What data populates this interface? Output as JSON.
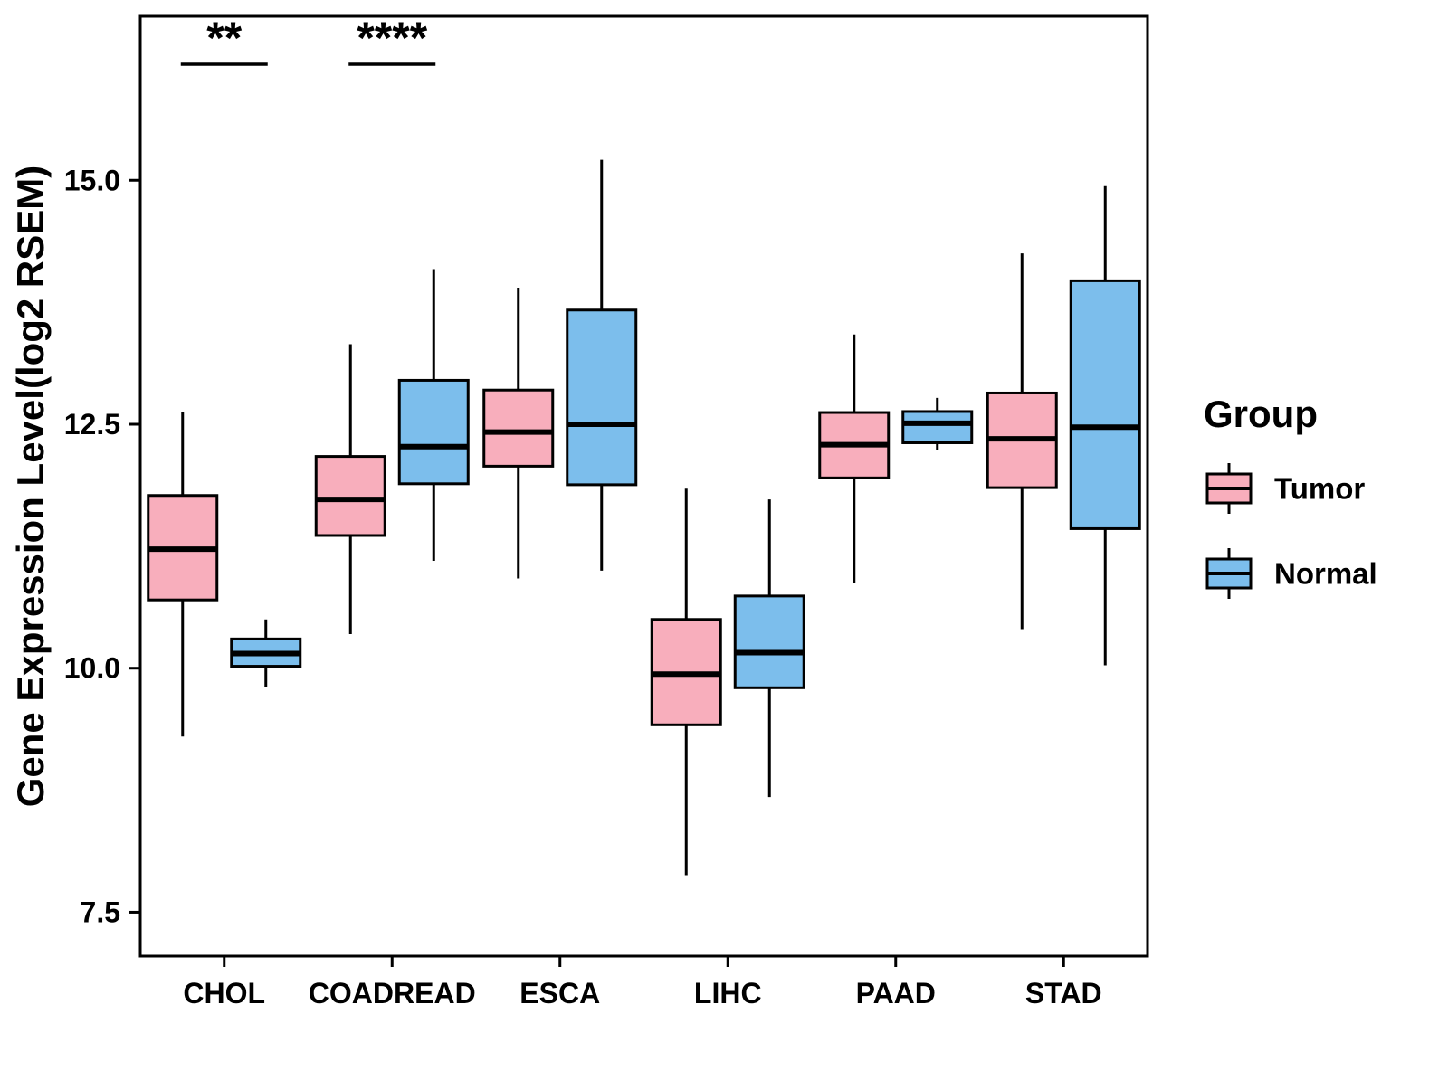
{
  "chart_data": {
    "type": "boxplot",
    "title": "",
    "xlabel": "",
    "ylabel": "Gene Expression Level(log2 RSEM)",
    "categories": [
      "CHOL",
      "COADREAD",
      "ESCA",
      "LIHC",
      "PAAD",
      "STAD"
    ],
    "yticks": [
      7.5,
      10.0,
      12.5,
      15.0
    ],
    "ylim": [
      7.05,
      16.68
    ],
    "grid": "off",
    "legend_position": "right",
    "legend": {
      "title": "Group",
      "entries": [
        {
          "label": "Tumor",
          "color": "#F8AEBC"
        },
        {
          "label": "Normal",
          "color": "#7CBEEC"
        }
      ]
    },
    "series": [
      {
        "name": "Tumor",
        "color": "#F8AEBC",
        "boxes": [
          {
            "category": "CHOL",
            "low": 9.3,
            "q1": 10.7,
            "median": 11.22,
            "q3": 11.77,
            "high": 12.63
          },
          {
            "category": "COADREAD",
            "low": 10.35,
            "q1": 11.36,
            "median": 11.73,
            "q3": 12.17,
            "high": 13.32
          },
          {
            "category": "ESCA",
            "low": 10.92,
            "q1": 12.07,
            "median": 12.42,
            "q3": 12.85,
            "high": 13.9
          },
          {
            "category": "LIHC",
            "low": 7.88,
            "q1": 9.42,
            "median": 9.94,
            "q3": 10.5,
            "high": 11.84
          },
          {
            "category": "PAAD",
            "low": 10.87,
            "q1": 11.95,
            "median": 12.29,
            "q3": 12.62,
            "high": 13.42
          },
          {
            "category": "STAD",
            "low": 10.4,
            "q1": 11.85,
            "median": 12.35,
            "q3": 12.82,
            "high": 14.25
          }
        ]
      },
      {
        "name": "Normal",
        "color": "#7CBEEC",
        "boxes": [
          {
            "category": "CHOL",
            "low": 9.81,
            "q1": 10.02,
            "median": 10.15,
            "q3": 10.3,
            "high": 10.5
          },
          {
            "category": "COADREAD",
            "low": 11.1,
            "q1": 11.89,
            "median": 12.27,
            "q3": 12.95,
            "high": 14.09
          },
          {
            "category": "ESCA",
            "low": 11.0,
            "q1": 11.88,
            "median": 12.5,
            "q3": 13.67,
            "high": 15.21
          },
          {
            "category": "LIHC",
            "low": 8.68,
            "q1": 9.8,
            "median": 10.16,
            "q3": 10.74,
            "high": 11.73
          },
          {
            "category": "PAAD",
            "low": 12.24,
            "q1": 12.31,
            "median": 12.51,
            "q3": 12.63,
            "high": 12.77
          },
          {
            "category": "STAD",
            "low": 10.03,
            "q1": 11.43,
            "median": 12.47,
            "q3": 13.97,
            "high": 14.94
          }
        ]
      }
    ],
    "annotations": [
      {
        "category": "CHOL",
        "label": "**",
        "y": 16.3
      },
      {
        "category": "COADREAD",
        "label": "****",
        "y": 16.3
      }
    ]
  }
}
